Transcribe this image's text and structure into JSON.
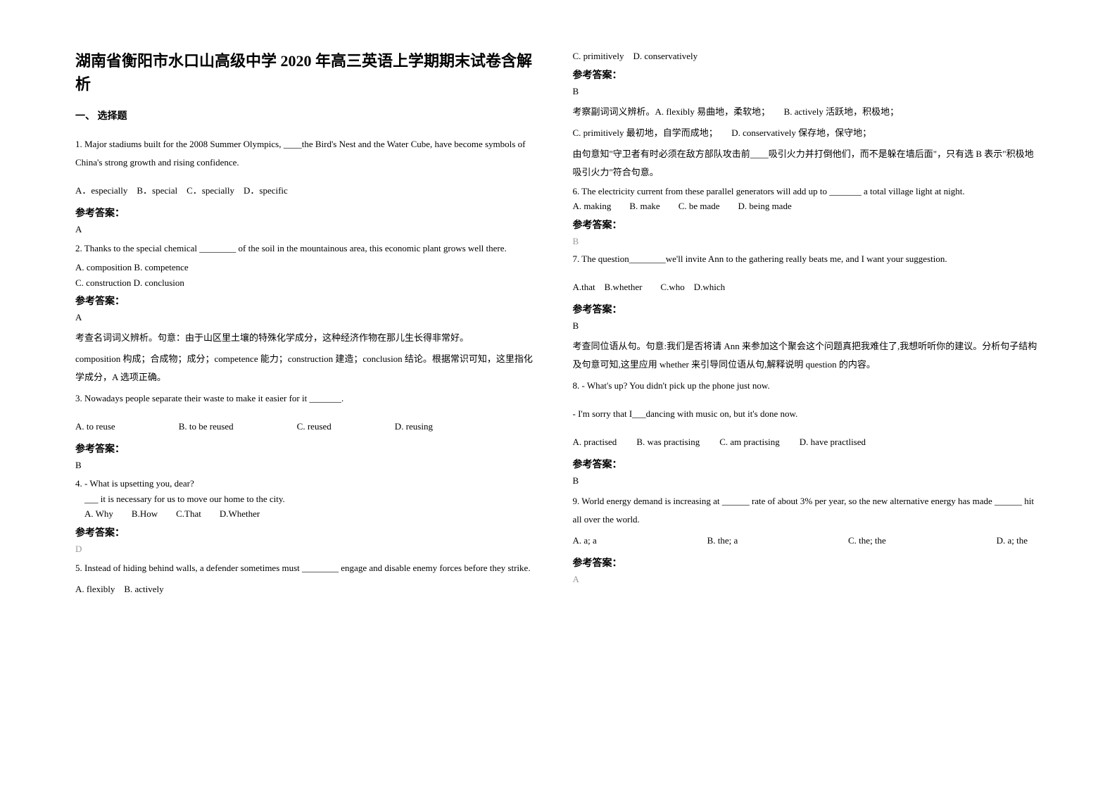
{
  "title": "湖南省衡阳市水口山高级中学 2020 年高三英语上学期期末试卷含解析",
  "section_heading": "一、 选择题",
  "answer_label": "参考答案：",
  "left": {
    "q1": {
      "text": "1. Major stadiums built for the 2008 Summer Olympics, ____the Bird's Nest and the Water Cube, have become symbols of China's strong growth and rising confidence.",
      "opts": "A．especially　B．special　C．specially　D．specific",
      "answer": "A"
    },
    "q2": {
      "text": "2. Thanks to the special chemical ________ of the soil in the mountainous area, this economic plant grows well there.",
      "opt_a": "A. composition   B. competence",
      "opt_c": "C. construction   D. conclusion",
      "answer": "A",
      "exp1": "考查名词词义辨析。句意：由于山区里土壤的特殊化学成分，这种经济作物在那儿生长得非常好。",
      "exp2": "composition 构成；合成物；成分；competence 能力；construction 建造；conclusion 结论。根据常识可知，这里指化学成分，A 选项正确。"
    },
    "q3": {
      "text": "3. Nowadays people separate their waste to make it easier for it _______.",
      "opt_a": "A. to reuse",
      "opt_b": "B. to be reused",
      "opt_c": "C. reused",
      "opt_d": "D. reusing",
      "answer": "B"
    },
    "q4": {
      "line1": "4. - What is upsetting you, dear?",
      "line2": "　___ it is necessary for us to move our home to the city.",
      "opts": "　A. Why　　B.How　　C.That　　D.Whether",
      "answer": "D"
    },
    "q5": {
      "text": "5. Instead of hiding behind walls, a defender sometimes must ________ engage and disable enemy forces before they strike.",
      "opts": "A. flexibly　B. actively"
    }
  },
  "right": {
    "q5_cont": {
      "opts": "C. primitively　D. conservatively",
      "answer": "B",
      "exp1": "考察副词词义辨析。A. flexibly 易曲地，柔软地；　　B. actively 活跃地，积极地；",
      "exp2": "C. primitively 最初地，自学而成地；　　D. conservatively 保存地，保守地；",
      "exp3": "由句意知\"守卫者有时必须在敌方部队攻击前____吸引火力并打倒他们，而不是躲在墙后面\"，只有选 B 表示\"积极地吸引火力\"符合句意。"
    },
    "q6": {
      "line1": "6. The electricity current from these parallel generators will add up to _______ a total village light at night.",
      "opts": "A. making　　B. make　　C. be made　　D. being made",
      "answer": "B"
    },
    "q7": {
      "text": "7. The question________we'll invite Ann to the gathering really beats me, and I want your suggestion.",
      "opts": "A.that　B.whether　　C.who　D.which",
      "answer": "B",
      "exp1": "考查同位语从句。句意:我们是否将请 Ann 来参加这个聚会这个问题真把我难住了,我想听听你的建议。分析句子结构及句意可知,这里应用 whether 来引导同位语从句,解释说明 question 的内容。"
    },
    "q8": {
      "line1": "8. - What's up? You didn't pick up the phone just now.",
      "line2": "- I'm sorry that I___dancing with music on, but it's done now.",
      "opt_a": "A. practised",
      "opt_b": "B. was practising",
      "opt_c": "C. am practising",
      "opt_d": "D. have practlised",
      "answer": "B"
    },
    "q9": {
      "text": "9. World energy demand is increasing at ______ rate of about 3% per year, so the new alternative energy has made ______ hit all over the world.",
      "opt_a": "A. a; a",
      "opt_b": "B. the; a",
      "opt_c": "C. the; the",
      "opt_d": "D. a; the",
      "answer": "A"
    }
  }
}
